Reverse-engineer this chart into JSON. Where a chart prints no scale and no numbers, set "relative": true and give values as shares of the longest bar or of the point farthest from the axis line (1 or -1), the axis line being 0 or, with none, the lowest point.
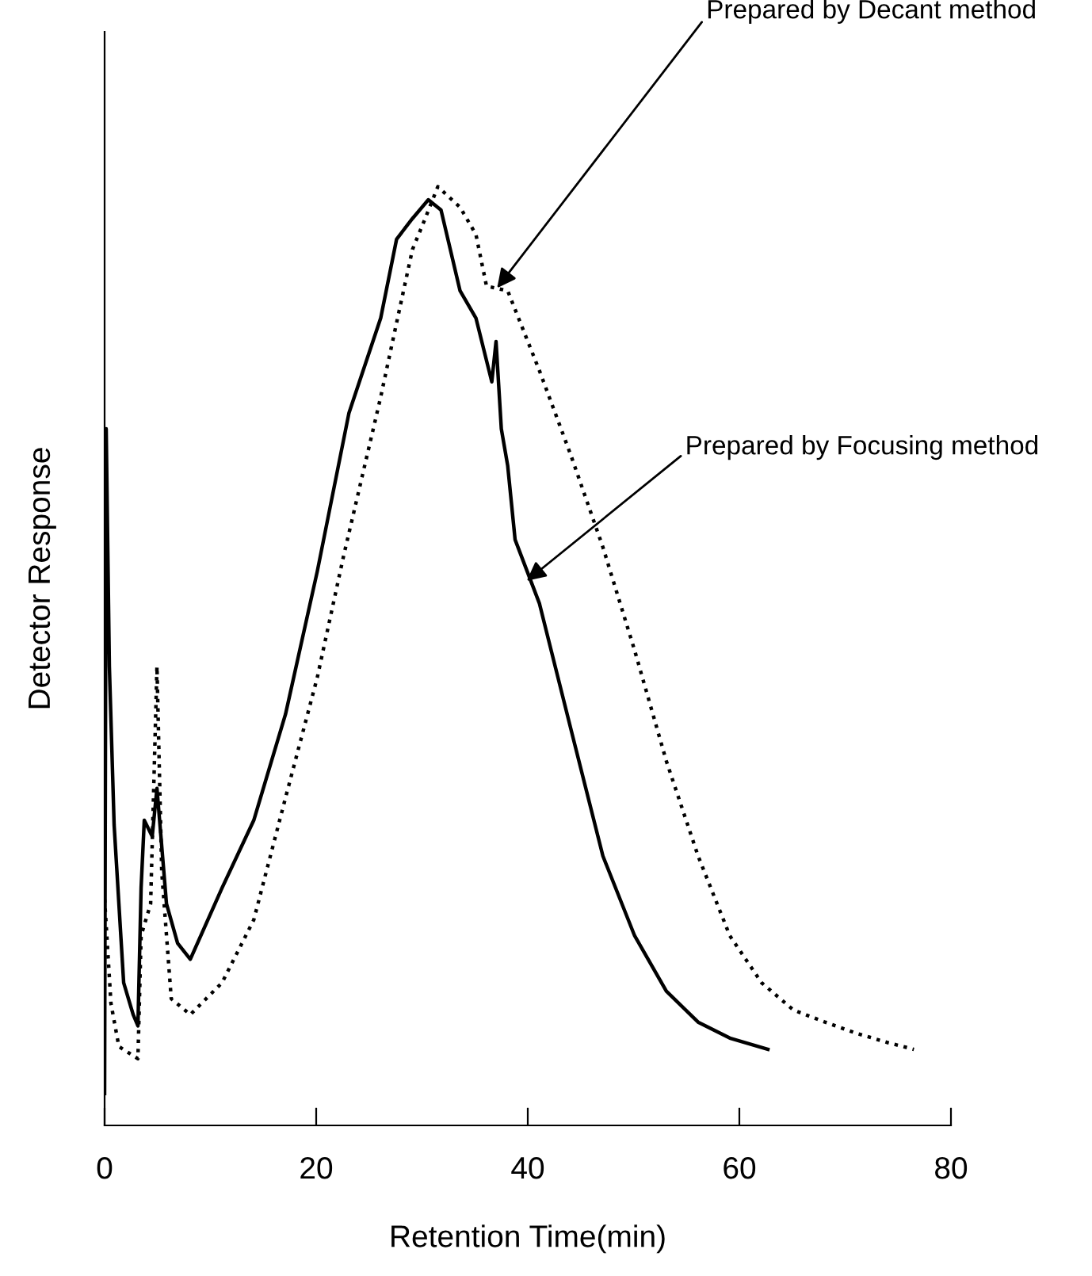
{
  "chart_data": {
    "type": "line",
    "relative": true,
    "xlabel": "Retention Time(min)",
    "ylabel": "Detector Response",
    "xlim": [
      0,
      80
    ],
    "xticks": [
      0,
      20,
      40,
      60,
      80
    ],
    "tick_labels": "x",
    "series": [
      {
        "color": "#000000",
        "line_style": "solid",
        "x": [
          0,
          0.15,
          0.45,
          0.9,
          1.8,
          2.7,
          3.15,
          3.45,
          3.75,
          4.5,
          4.95,
          5.85,
          6.9,
          8.1,
          11.1,
          14.1,
          17.1,
          20.1,
          23.1,
          26.1,
          27.6,
          29.1,
          30.6,
          31.8,
          33.6,
          35.1,
          36.6,
          37.0,
          37.5,
          38.1,
          38.8,
          41.1,
          44.1,
          47.1,
          50.1,
          53.1,
          56.1,
          59.1,
          62.7
        ],
        "values": [
          0.034,
          0.742,
          0.489,
          0.32,
          0.152,
          0.118,
          0.106,
          0.253,
          0.325,
          0.308,
          0.359,
          0.236,
          0.194,
          0.177,
          0.253,
          0.325,
          0.438,
          0.59,
          0.759,
          0.86,
          0.944,
          0.966,
          0.986,
          0.975,
          0.889,
          0.86,
          0.792,
          0.835,
          0.742,
          0.703,
          0.624,
          0.556,
          0.421,
          0.287,
          0.202,
          0.143,
          0.11,
          0.093,
          0.081
        ]
      },
      {
        "color": "#000000",
        "line_style": "dotted",
        "x": [
          0,
          0.6,
          1.35,
          3.15,
          3.45,
          4.35,
          4.95,
          5.4,
          6.3,
          8.1,
          11.1,
          14.1,
          17.1,
          20.1,
          22.6,
          26.1,
          27.6,
          29.1,
          30.3,
          31.5,
          33.6,
          35.1,
          36.1,
          38.1,
          41.1,
          44.1,
          47.1,
          50.1,
          53.1,
          56.1,
          59.1,
          62.1,
          65.1,
          68.1,
          71.1,
          74.1,
          76.5
        ],
        "values": [
          0.241,
          0.13,
          0.084,
          0.071,
          0.202,
          0.236,
          0.489,
          0.27,
          0.135,
          0.118,
          0.152,
          0.219,
          0.349,
          0.477,
          0.607,
          0.776,
          0.855,
          0.933,
          0.966,
          1.0,
          0.978,
          0.949,
          0.894,
          0.889,
          0.804,
          0.713,
          0.616,
          0.506,
          0.388,
          0.287,
          0.202,
          0.152,
          0.123,
          0.11,
          0.098,
          0.088,
          0.081
        ]
      }
    ],
    "annotations": [
      {
        "text": "Prepared by Decant method",
        "x": 37.1,
        "y": 0.892
      },
      {
        "text": "Prepared by Focusing method",
        "x": 39.9,
        "y": 0.58
      }
    ]
  }
}
